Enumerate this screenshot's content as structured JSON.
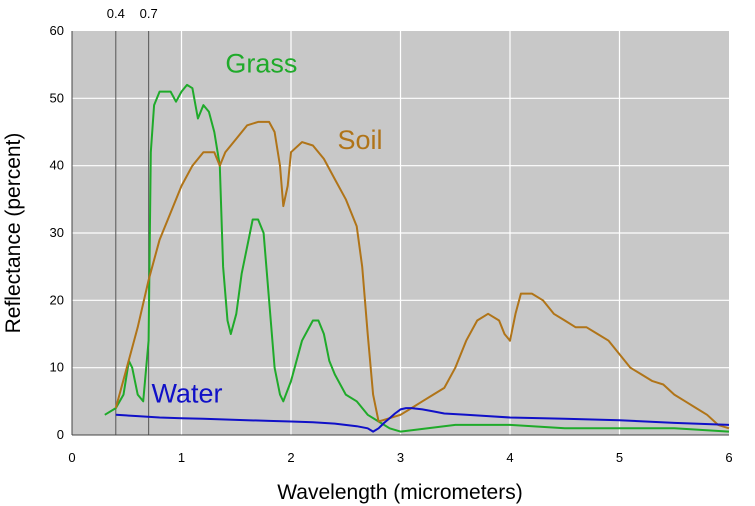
{
  "chart_data": {
    "type": "line",
    "xlabel": "Wavelength (micrometers)",
    "ylabel": "Reflectance (percent)",
    "xlim": [
      0,
      6
    ],
    "ylim": [
      0,
      60
    ],
    "xticks": [
      "0",
      "1",
      "2",
      "3",
      "4",
      "5",
      "6"
    ],
    "yticks": [
      "0",
      "10",
      "20",
      "30",
      "40",
      "50",
      "60"
    ],
    "grid": true,
    "background": "#c8c8c8",
    "reference_lines": [
      {
        "x": 0.4,
        "label": "0.4"
      },
      {
        "x": 0.7,
        "label": "0.7"
      }
    ],
    "series": [
      {
        "name": "Grass",
        "color": "#1faa2a",
        "x": [
          0.3,
          0.4,
          0.47,
          0.52,
          0.55,
          0.6,
          0.65,
          0.7,
          0.72,
          0.75,
          0.8,
          0.9,
          0.95,
          1.0,
          1.05,
          1.1,
          1.15,
          1.2,
          1.25,
          1.3,
          1.35,
          1.38,
          1.42,
          1.45,
          1.5,
          1.55,
          1.6,
          1.65,
          1.7,
          1.75,
          1.8,
          1.85,
          1.9,
          1.93,
          2.0,
          2.1,
          2.2,
          2.25,
          2.3,
          2.35,
          2.4,
          2.5,
          2.6,
          2.7,
          2.8,
          2.9,
          3.0,
          3.5,
          4.0,
          4.5,
          5.0,
          5.5,
          6.0
        ],
        "y": [
          3,
          4,
          6,
          11,
          10,
          6,
          5,
          14,
          42,
          49,
          51,
          51,
          49.5,
          51,
          52,
          51.5,
          47,
          49,
          48,
          45,
          40,
          25,
          17,
          15,
          18,
          24,
          28,
          32,
          32,
          30,
          20,
          10,
          6,
          5,
          8,
          14,
          17,
          17,
          15,
          11,
          9,
          6,
          5,
          3,
          2,
          1,
          0.5,
          1.5,
          1.5,
          1,
          1,
          1,
          0.5
        ]
      },
      {
        "name": "Soil",
        "color": "#b07418",
        "x": [
          0.4,
          0.5,
          0.6,
          0.7,
          0.8,
          0.9,
          1.0,
          1.1,
          1.2,
          1.3,
          1.35,
          1.4,
          1.5,
          1.6,
          1.7,
          1.8,
          1.85,
          1.9,
          1.93,
          1.97,
          2.0,
          2.1,
          2.2,
          2.3,
          2.4,
          2.5,
          2.6,
          2.65,
          2.7,
          2.75,
          2.8,
          2.9,
          3.0,
          3.1,
          3.2,
          3.3,
          3.4,
          3.5,
          3.6,
          3.7,
          3.8,
          3.9,
          3.95,
          4.0,
          4.05,
          4.1,
          4.2,
          4.3,
          4.4,
          4.5,
          4.6,
          4.7,
          4.8,
          4.9,
          5.0,
          5.1,
          5.2,
          5.3,
          5.4,
          5.5,
          5.6,
          5.7,
          5.8,
          5.9,
          6.0
        ],
        "y": [
          4,
          10,
          16,
          23,
          29,
          33,
          37,
          40,
          42,
          42,
          40,
          42,
          44,
          46,
          46.5,
          46.5,
          45,
          40,
          34,
          37,
          42,
          43.5,
          43,
          41,
          38,
          35,
          31,
          25,
          15,
          6,
          2,
          2.5,
          3,
          4,
          5,
          6,
          7,
          10,
          14,
          17,
          18,
          17,
          15,
          14,
          18,
          21,
          21,
          20,
          18,
          17,
          16,
          16,
          15,
          14,
          12,
          10,
          9,
          8,
          7.5,
          6,
          5,
          4,
          3,
          1.5,
          1
        ]
      },
      {
        "name": "Water",
        "color": "#1010c8",
        "x": [
          0.4,
          0.6,
          0.8,
          1.0,
          1.2,
          1.4,
          1.6,
          1.8,
          2.0,
          2.2,
          2.4,
          2.6,
          2.7,
          2.75,
          2.8,
          2.85,
          2.9,
          2.95,
          3.0,
          3.05,
          3.1,
          3.2,
          3.3,
          3.4,
          3.6,
          3.8,
          4.0,
          4.5,
          5.0,
          5.5,
          6.0
        ],
        "y": [
          3,
          2.8,
          2.6,
          2.5,
          2.4,
          2.3,
          2.2,
          2.1,
          2.0,
          1.9,
          1.7,
          1.3,
          1.0,
          0.5,
          1.0,
          1.8,
          2.5,
          3.2,
          3.8,
          4.0,
          4.0,
          3.8,
          3.5,
          3.2,
          3.0,
          2.8,
          2.6,
          2.4,
          2.2,
          1.8,
          1.5
        ]
      }
    ]
  }
}
